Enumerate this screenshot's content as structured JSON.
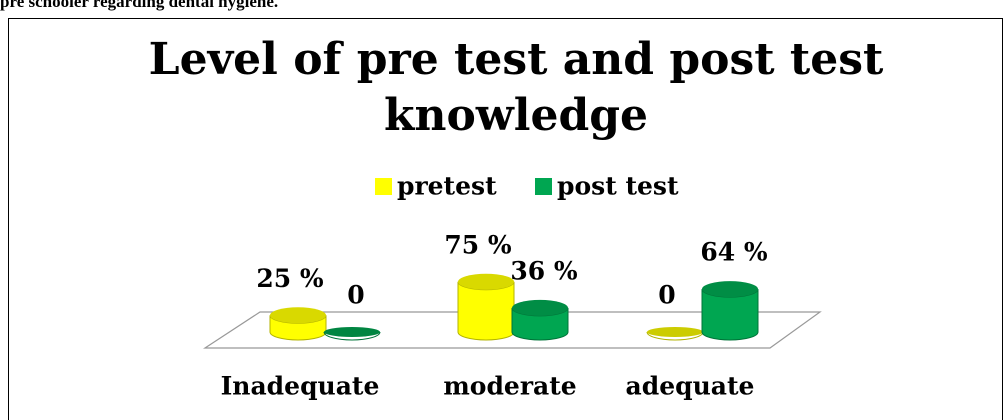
{
  "caption": "pre schooler regarding dental hygiene.",
  "chart_data": {
    "type": "cylinder-bar",
    "title": "Level of pre test and post test knowledge",
    "categories": [
      "Inadequate",
      "moderate",
      "adequate"
    ],
    "series": [
      {
        "name": "pretest",
        "color": "#ffff00",
        "values": [
          25,
          75,
          0
        ],
        "value_labels": [
          "25 %",
          "75 %",
          "0"
        ]
      },
      {
        "name": "post test",
        "color": "#00a651",
        "values": [
          0,
          36,
          64
        ],
        "value_labels": [
          "0",
          "36 %",
          "64 %"
        ]
      }
    ],
    "legend": "top"
  }
}
